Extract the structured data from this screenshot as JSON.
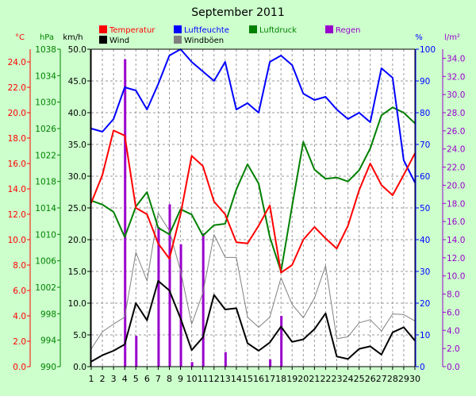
{
  "chart_data": {
    "type": "line",
    "title": "September 2011",
    "x": [
      1,
      2,
      3,
      4,
      5,
      6,
      7,
      8,
      9,
      10,
      11,
      12,
      13,
      14,
      15,
      16,
      17,
      18,
      19,
      20,
      21,
      22,
      23,
      24,
      25,
      26,
      27,
      28,
      29,
      30
    ],
    "axes": {
      "temperature": {
        "unit": "°C",
        "range": [
          0,
          25
        ],
        "ticks": [
          "0.0",
          "2.0",
          "4.0",
          "6.0",
          "8.0",
          "10.0",
          "12.0",
          "14.0",
          "16.0",
          "18.0",
          "20.0",
          "22.0",
          "24.0"
        ],
        "color": "#ff0000"
      },
      "pressure": {
        "unit": "hPa",
        "range": [
          990,
          1038
        ],
        "ticks": [
          "990",
          "994",
          "998",
          "1002",
          "1006",
          "1010",
          "1014",
          "1018",
          "1022",
          "1026",
          "1030",
          "1034",
          "1038"
        ],
        "color": "#008000"
      },
      "wind": {
        "unit": "km/h",
        "range": [
          0,
          50
        ],
        "ticks": [
          "0.0",
          "5.0",
          "10.0",
          "15.0",
          "20.0",
          "25.0",
          "30.0",
          "35.0",
          "40.0",
          "45.0",
          "50.0"
        ],
        "color": "#000000"
      },
      "humidity": {
        "unit": "%",
        "range": [
          0,
          100
        ],
        "ticks": [
          "0",
          "10",
          "20",
          "30",
          "40",
          "50",
          "60",
          "70",
          "80",
          "90",
          "100"
        ],
        "color": "#0000ff"
      },
      "rain": {
        "unit": "l/m²",
        "range": [
          0,
          35
        ],
        "ticks": [
          "0.0",
          "2.0",
          "4.0",
          "6.0",
          "8.0",
          "10.0",
          "12.0",
          "14.0",
          "16.0",
          "18.0",
          "20.0",
          "22.0",
          "24.0",
          "26.0",
          "28.0",
          "30.0",
          "32.0",
          "34.0"
        ],
        "color": "#9900cc"
      }
    },
    "legend": {
      "placement": "top",
      "items": [
        {
          "name": "Temperatur",
          "color": "#ff0000"
        },
        {
          "name": "Luftfeuchte",
          "color": "#0000ff"
        },
        {
          "name": "Luftdruck",
          "color": "#008000"
        },
        {
          "name": "Regen",
          "color": "#9900cc"
        },
        {
          "name": "Wind",
          "color": "#000000"
        },
        {
          "name": "Windböen",
          "color": "#808080"
        }
      ]
    },
    "grid": true,
    "series": [
      {
        "name": "Temperatur",
        "axis": "temperature",
        "color": "#ff0000",
        "values": [
          12.9,
          15.1,
          18.6,
          18.2,
          12.5,
          12.0,
          9.7,
          8.5,
          12.0,
          16.6,
          15.8,
          13.0,
          12.0,
          9.8,
          9.7,
          11.1,
          12.7,
          7.4,
          8.0,
          10.0,
          11.0,
          10.1,
          9.3,
          11.1,
          13.9,
          16.0,
          14.3,
          13.5,
          15.1,
          16.8
        ]
      },
      {
        "name": "Luftfeuchte",
        "axis": "humidity",
        "color": "#0000ff",
        "values": [
          75,
          74,
          78,
          88,
          87,
          81,
          89,
          98,
          100,
          96,
          93,
          90,
          96,
          81,
          83,
          80,
          96,
          98,
          95,
          86,
          84,
          85,
          81,
          78,
          80,
          77,
          94,
          91,
          65,
          58
        ]
      },
      {
        "name": "Luftdruck",
        "axis": "pressure",
        "color": "#008000",
        "values": [
          1015.1,
          1014.5,
          1013.4,
          1009.6,
          1014.2,
          1016.4,
          1011.0,
          1010.0,
          1013.8,
          1013.0,
          1009.8,
          1011.4,
          1011.6,
          1016.8,
          1020.6,
          1017.7,
          1009.6,
          1004.4,
          1014.3,
          1024.0,
          1019.8,
          1018.4,
          1018.6,
          1018.0,
          1019.7,
          1023.0,
          1028.0,
          1029.2,
          1028.4,
          1026.8
        ]
      },
      {
        "name": "Wind",
        "axis": "wind",
        "color": "#000000",
        "values": [
          0.8,
          1.8,
          2.5,
          3.5,
          10.0,
          7.3,
          13.5,
          12.0,
          7.6,
          2.6,
          4.6,
          11.3,
          9.0,
          9.2,
          3.7,
          2.5,
          3.8,
          6.3,
          3.9,
          4.3,
          5.9,
          8.4,
          1.6,
          1.2,
          2.8,
          3.2,
          1.9,
          5.4,
          6.2,
          4.1
        ]
      },
      {
        "name": "Windböen",
        "axis": "wind",
        "color": "#808080",
        "values": [
          2.8,
          5.5,
          6.7,
          7.8,
          18.0,
          13.5,
          24.2,
          21.4,
          15.1,
          6.7,
          11.6,
          20.8,
          17.2,
          17.2,
          7.8,
          6.2,
          7.8,
          14.0,
          9.8,
          7.7,
          10.8,
          15.9,
          4.4,
          4.7,
          6.9,
          7.4,
          5.6,
          8.3,
          8.2,
          7.2
        ]
      },
      {
        "name": "Regen",
        "axis": "rain",
        "color": "#9900cc",
        "type": "bar",
        "values": [
          0,
          0,
          0,
          33.9,
          3.4,
          0,
          15.4,
          17.9,
          13.5,
          0.5,
          14.7,
          0,
          1.6,
          0,
          0,
          0,
          0.8,
          5.6,
          0,
          0,
          0,
          0,
          0,
          0,
          0,
          0,
          0,
          0,
          0,
          0
        ]
      }
    ]
  }
}
